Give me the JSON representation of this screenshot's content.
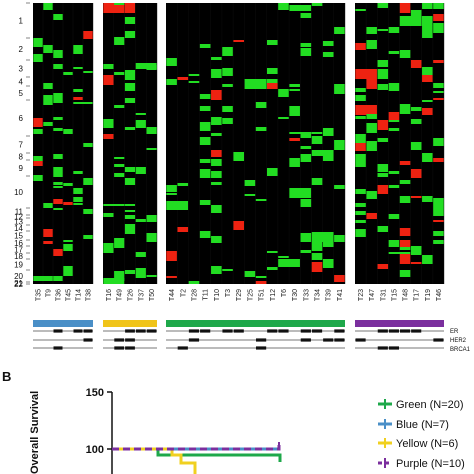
{
  "chart_data": [
    {
      "type": "heatmap",
      "panel": "A",
      "chromosomes": [
        "1",
        "2",
        "3",
        "4",
        "5",
        "6",
        "7",
        "8",
        "9",
        "10",
        "11",
        "12",
        "13",
        "14",
        "15",
        "16",
        "17",
        "18",
        "19",
        "20",
        "21",
        "22"
      ],
      "groups": [
        {
          "color": "#4a8fc7",
          "samples": [
            "T35",
            "T9",
            "T36",
            "T45",
            "T14",
            "T38"
          ]
        },
        {
          "color": "#f0c419",
          "samples": [
            "T16",
            "T49",
            "T26",
            "T37",
            "T50"
          ]
        },
        {
          "color": "#1ea84a",
          "samples": [
            "T44",
            "T2",
            "T28",
            "T11",
            "T10",
            "T3",
            "T29",
            "T25",
            "T51",
            "T12",
            "T6",
            "T30",
            "T33",
            "T34",
            "T39",
            "T41"
          ]
        },
        {
          "color": "#7b2f9e",
          "samples": [
            "T23",
            "T47",
            "T31",
            "T15",
            "T48",
            "T17",
            "T19",
            "T46"
          ]
        }
      ],
      "row_labels": [
        "ER",
        "HER2",
        "BRCA1"
      ],
      "colors": {
        "gain": "#22dd22",
        "loss": "#ee2211",
        "neutral": "#000000"
      }
    },
    {
      "type": "line",
      "panel": "B",
      "panel_label": "B",
      "ylabel": "Overall Survival",
      "ylim": [
        0,
        150
      ],
      "yticks": [
        "150",
        "100"
      ],
      "series": [
        {
          "name": "Green (N=20)",
          "color": "#1ea84a",
          "dashed": false
        },
        {
          "name": "Blue (N=7)",
          "color": "#4a8fc7",
          "dashed": false
        },
        {
          "name": "Yellow (N=6)",
          "color": "#f0d020",
          "dashed": false
        },
        {
          "name": "Purple (N=10)",
          "color": "#7b2f9e",
          "dashed": true
        }
      ]
    }
  ]
}
